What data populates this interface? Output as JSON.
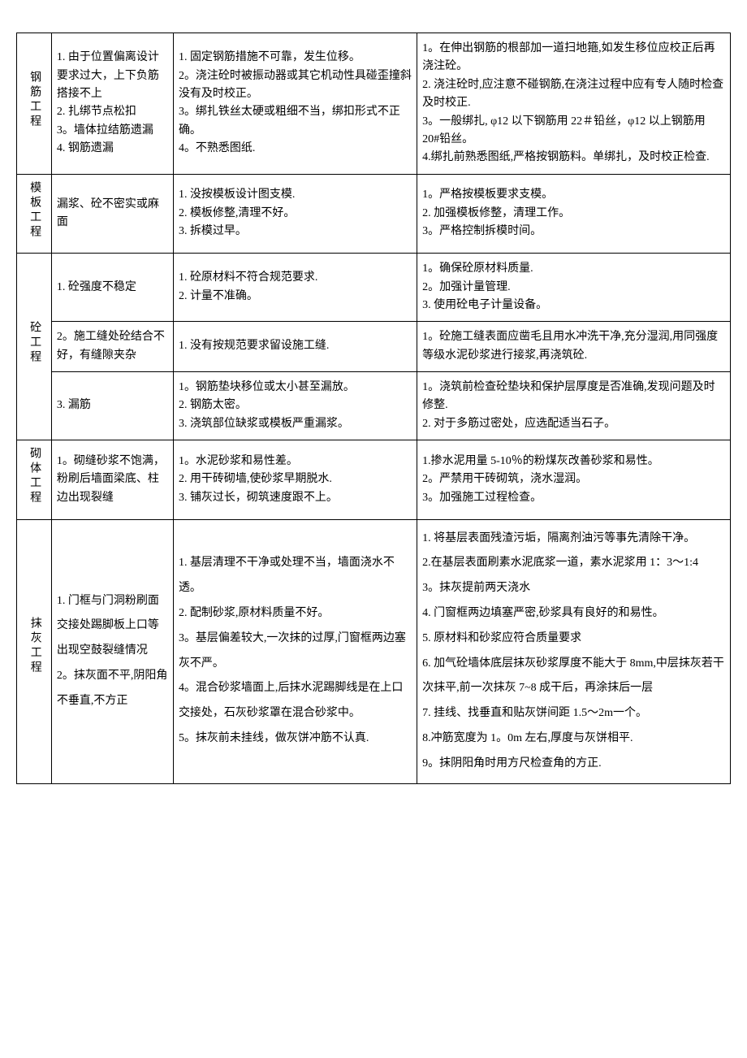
{
  "categories": {
    "rebar": "钢筋工程",
    "formwork": "模板工程",
    "concrete": "砼工程",
    "masonry": "砌体工程",
    "plastering": "抹灰工程"
  },
  "rows": {
    "rebar": {
      "problem": "1. 由于位置偏离设计要求过大，上下负筋搭接不上\n2. 扎绑节点松扣\n3。墙体拉结筋遗漏\n4. 钢筋遗漏",
      "cause": "1. 固定钢筋措施不可靠，发生位移。\n2。浇注砼时被振动器或其它机动性具碰歪撞斜没有及时校正。\n3。绑扎铁丝太硬或粗细不当，绑扣形式不正确。\n4。不熟悉图纸.",
      "measure": "1。在伸出钢筋的根部加一道扫地箍,如发生移位应校正后再浇注砼。\n2. 浇注砼时,应注意不碰钢筋,在浇注过程中应有专人随时检查及时校正.\n3。一般绑扎, φ12 以下钢筋用 22＃铅丝，φ12 以上钢筋用 20#铅丝。\n4.绑扎前熟悉图纸,严格按钢筋料。单绑扎，及时校正检查."
    },
    "formwork": {
      "problem": "漏浆、砼不密实或麻面",
      "cause": "1. 没按模板设计图支模.\n2. 模板修整,清理不好。\n3. 拆模过早。",
      "measure": "1。严格按模板要求支模。\n2. 加强模板修整，清理工作。\n3。严格控制拆模时间。"
    },
    "concrete1": {
      "problem": "1. 砼强度不稳定",
      "cause": "1. 砼原材料不符合规范要求.\n2. 计量不准确。",
      "measure": "1。确保砼原材料质量.\n2。加强计量管理.\n3. 使用砼电子计量设备。"
    },
    "concrete2": {
      "problem": "2。施工缝处砼结合不好，有缝隙夹杂",
      "cause": "1. 没有按规范要求留设施工缝.",
      "measure": "1。砼施工缝表面应凿毛且用水冲洗干净,充分湿润,用同强度等级水泥砂浆进行接浆,再浇筑砼."
    },
    "concrete3": {
      "problem": "3. 漏筋",
      "cause": "1。钢筋垫块移位或太小甚至漏放。\n2. 钢筋太密。\n3. 浇筑部位缺浆或模板严重漏浆。",
      "measure": "1。浇筑前检查砼垫块和保护层厚度是否准确,发现问题及时修整.\n2. 对于多筋过密处，应选配适当石子。"
    },
    "masonry": {
      "problem": "1。砌缝砂浆不饱满，粉刷后墙面梁底、柱边出现裂缝",
      "cause": "1。水泥砂浆和易性差。\n2. 用干砖砌墙,使砂浆早期脱水.\n3. 铺灰过长，砌筑速度跟不上。",
      "measure": "1.掺水泥用量 5-10％的粉煤灰改善砂浆和易性。\n2。严禁用干砖砌筑，浇水湿润。\n3。加强施工过程检查。"
    },
    "plastering": {
      "problem": "1. 门框与门洞粉刷面交接处踢脚板上口等出现空鼓裂缝情况\n2。抹灰面不平,阴阳角不垂直,不方正",
      "cause": "1. 基层清理不干净或处理不当，墙面浇水不透。\n2. 配制砂浆,原材料质量不好。\n3。基层偏差较大,一次抹的过厚,门窗框两边塞灰不严。\n4。混合砂浆墙面上,后抹水泥踢脚线是在上口交接处，石灰砂浆罩在混合砂浆中。\n5。抹灰前未挂线，做灰饼冲筋不认真.",
      "measure": "1. 将基层表面残渣污垢，隔离剂油污等事先清除干净。\n2.在基层表面刷素水泥底浆一道，素水泥浆用 1：3～1:4\n3。抹灰提前两天浇水\n4. 门窗框两边填塞严密,砂浆具有良好的和易性。\n5. 原材料和砂浆应符合质量要求\n6. 加气砼墙体底层抹灰砂浆厚度不能大于 8mm,中层抹灰若干次抹平,前一次抹灰 7~8 成干后，再涂抹后一层\n7. 挂线、找垂直和贴灰饼间距 1.5～2m一个。\n8.冲筋宽度为 1。0m 左右,厚度与灰饼相平.\n9。抹阴阳角时用方尺检查角的方正."
    }
  }
}
